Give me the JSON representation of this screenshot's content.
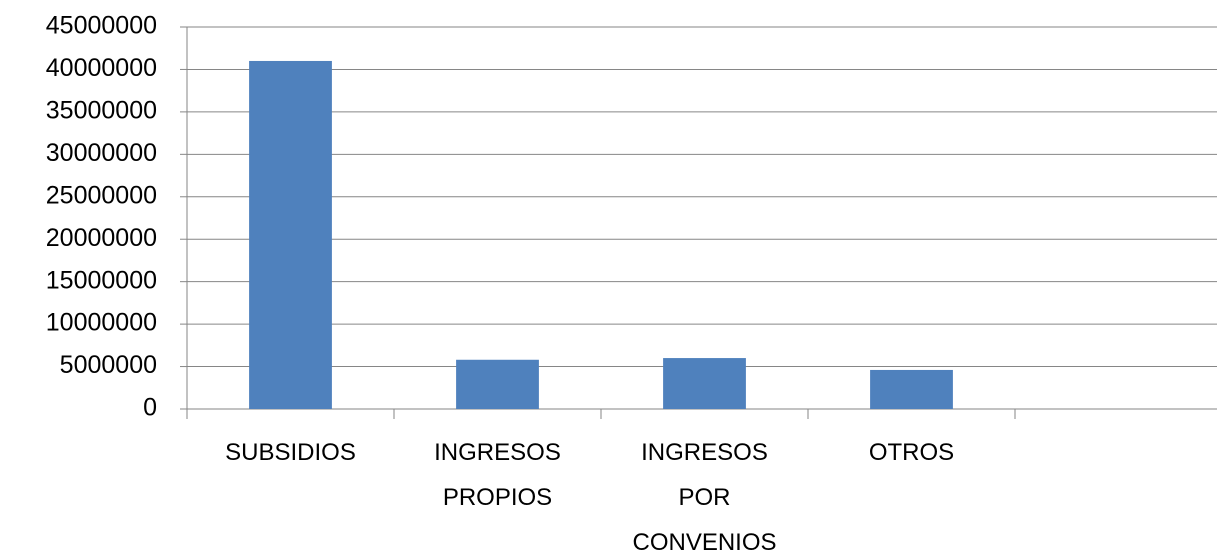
{
  "chart_data": {
    "type": "bar",
    "categories": [
      "SUBSIDIOS",
      "INGRESOS PROPIOS",
      "INGRESOS POR CONVENIOS",
      "OTROS",
      null
    ],
    "values": [
      41000000,
      5800000,
      6000000,
      4600000,
      null
    ],
    "color": "#4f81bd",
    "ylim": [
      0,
      45000000
    ],
    "yticks": [
      0,
      5000000,
      10000000,
      15000000,
      20000000,
      25000000,
      30000000,
      35000000,
      40000000,
      45000000
    ],
    "grid": true
  }
}
